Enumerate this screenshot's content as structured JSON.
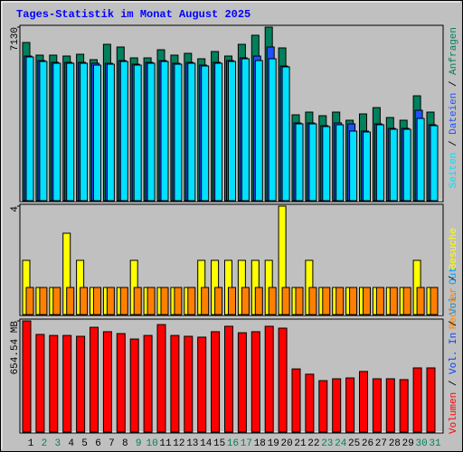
{
  "chart_data": [
    {
      "type": "bar",
      "title": "Tages-Statistik im Monat August 2025",
      "ylim": [
        0,
        7130
      ],
      "yticks": [
        7130
      ],
      "series": [
        {
          "name": "Anfragen",
          "color": "#00805c",
          "values": [
            6499,
            5979,
            5979,
            5942,
            6016,
            5793,
            6424,
            6313,
            5867,
            5867,
            6201,
            5979,
            6053,
            5830,
            6127,
            5942,
            6424,
            6796,
            7130,
            6276,
            3528,
            3639,
            3491,
            3639,
            3305,
            3565,
            3825,
            3416,
            3305,
            4308,
            3639
          ]
        },
        {
          "name": "Dateien",
          "color": "#2050ff",
          "values": [
            5942,
            5756,
            5682,
            5682,
            5682,
            5645,
            5645,
            5756,
            5607,
            5682,
            5756,
            5645,
            5682,
            5570,
            5682,
            5756,
            5868,
            5942,
            6313,
            5533,
            3193,
            3193,
            3082,
            3193,
            3156,
            2859,
            3156,
            2971,
            2971,
            3714,
            3119
          ]
        },
        {
          "name": "Seiten",
          "color": "#00e0ff",
          "values": [
            5904,
            5719,
            5645,
            5645,
            5645,
            5570,
            5607,
            5719,
            5570,
            5645,
            5719,
            5607,
            5645,
            5533,
            5645,
            5719,
            5830,
            5756,
            5830,
            5496,
            3156,
            3156,
            3045,
            3119,
            2859,
            2822,
            3119,
            2934,
            2934,
            3379,
            3082
          ]
        }
      ]
    },
    {
      "type": "bar",
      "ylim": [
        0,
        4
      ],
      "yticks": [
        4
      ],
      "series": [
        {
          "name": "Besuche",
          "color": "#ffff00",
          "values": [
            2,
            1,
            1,
            3,
            2,
            1,
            1,
            1,
            2,
            1,
            1,
            1,
            1,
            2,
            2,
            2,
            2,
            2,
            2,
            4,
            1,
            2,
            1,
            1,
            1,
            1,
            1,
            1,
            1,
            2,
            1
          ]
        },
        {
          "name": "Rechner",
          "color": "#ff8000",
          "values": [
            1,
            1,
            1,
            1,
            1,
            1,
            1,
            1,
            1,
            1,
            1,
            1,
            1,
            1,
            1,
            1,
            1,
            1,
            1,
            1,
            1,
            1,
            1,
            1,
            1,
            1,
            1,
            1,
            1,
            1,
            1
          ]
        }
      ]
    },
    {
      "type": "bar",
      "ylim": [
        0,
        654.54
      ],
      "yticks": [
        {
          "value": 654.54,
          "label": "654.54 MB"
        }
      ],
      "series": [
        {
          "name": "Volumen",
          "color": "#ff0000",
          "values": [
            654.54,
            575,
            569,
            569,
            564,
            617,
            591,
            580,
            548,
            569,
            633,
            569,
            564,
            559,
            591,
            623,
            585,
            591,
            623,
            612,
            372,
            341,
            303,
            314,
            319,
            357,
            314,
            314,
            309,
            378,
            378
          ]
        }
      ],
      "legend": [
        {
          "name": "Vol. In",
          "color": "#0040ff"
        },
        {
          "name": "Vol. Out",
          "color": "#00a0ff"
        }
      ],
      "categories": [
        "1",
        "2",
        "3",
        "4",
        "5",
        "6",
        "7",
        "8",
        "9",
        "10",
        "11",
        "12",
        "13",
        "14",
        "15",
        "16",
        "17",
        "18",
        "19",
        "20",
        "21",
        "22",
        "23",
        "24",
        "25",
        "26",
        "27",
        "28",
        "29",
        "30",
        "31"
      ],
      "category_colors": [
        "#000000",
        "#00805c",
        "#00805c",
        "#000000",
        "#000000",
        "#000000",
        "#000000",
        "#000000",
        "#00805c",
        "#00805c",
        "#000000",
        "#000000",
        "#000000",
        "#000000",
        "#000000",
        "#00805c",
        "#00805c",
        "#000000",
        "#000000",
        "#000000",
        "#000000",
        "#000000",
        "#00805c",
        "#00805c",
        "#000000",
        "#000000",
        "#000000",
        "#000000",
        "#000000",
        "#00805c",
        "#00805c"
      ]
    }
  ]
}
